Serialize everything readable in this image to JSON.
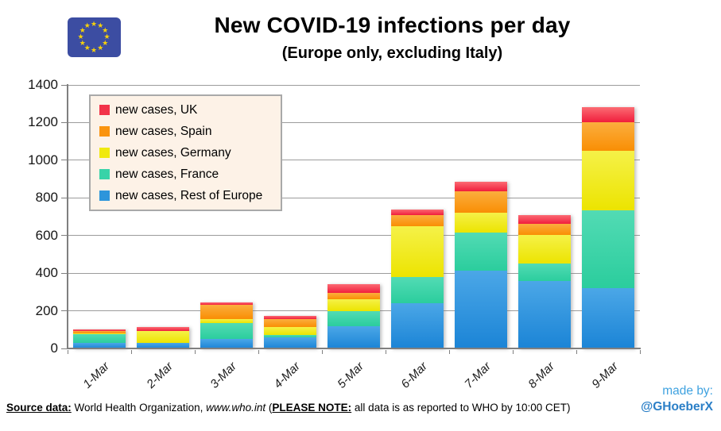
{
  "header": {
    "flag": {
      "background": "#3c4da2",
      "star_color": "#f6d10a",
      "star_glyph": "★"
    }
  },
  "chart_data": {
    "type": "bar",
    "stacked": true,
    "title": "New COVID-19 infections per day",
    "subtitle": "(Europe only, excluding Italy)",
    "categories": [
      "1-Mar",
      "2-Mar",
      "3-Mar",
      "4-Mar",
      "5-Mar",
      "6-Mar",
      "7-Mar",
      "8-Mar",
      "9-Mar"
    ],
    "series": [
      {
        "name": "new cases, UK",
        "color": "#f23349",
        "gradient": [
          "#fb6b73",
          "#f01e3c"
        ],
        "values": [
          10,
          18,
          10,
          14,
          44,
          27,
          52,
          46,
          80
        ]
      },
      {
        "name": "new cases, Spain",
        "color": "#fa9410",
        "gradient": [
          "#fbae3e",
          "#f98e04"
        ],
        "values": [
          11,
          0,
          79,
          42,
          35,
          60,
          115,
          60,
          152
        ]
      },
      {
        "name": "new cases, Germany",
        "color": "#f0e90f",
        "gradient": [
          "#f5f148",
          "#ece400"
        ],
        "values": [
          5,
          66,
          20,
          42,
          63,
          270,
          105,
          150,
          315
        ]
      },
      {
        "name": "new cases, France",
        "color": "#38d3a8",
        "gradient": [
          "#52dbb4",
          "#2bcd9d"
        ],
        "values": [
          45,
          0,
          85,
          13,
          78,
          140,
          200,
          92,
          415
        ]
      },
      {
        "name": "new cases, Rest of Europe",
        "color": "#2d95db",
        "gradient": [
          "#4ba7e7",
          "#1b84d6"
        ],
        "values": [
          30,
          28,
          50,
          60,
          120,
          240,
          415,
          360,
          320
        ]
      }
    ],
    "stack_note": "series listed top-of-stack first; bottom-to-top order is Rest of Europe, France, Germany, Spain, UK",
    "totals": [
      101,
      112,
      244,
      171,
      340,
      737,
      887,
      708,
      1282
    ],
    "ylim": [
      0,
      1400
    ],
    "ytick_interval": 200,
    "yticks": [
      0,
      200,
      400,
      600,
      800,
      1000,
      1200,
      1400
    ],
    "xlabel": "",
    "ylabel": "",
    "grid": true,
    "legend_position": "upper-left",
    "grid_color": "#9c9c9c",
    "axis_color": "#7f7f7f"
  },
  "footer": {
    "source_label": "Source data:",
    "source_text": " World Health Organization, ",
    "source_site": "www.who.int",
    "note_open": "  (",
    "note_label": "PLEASE NOTE:",
    "note_text": " all data is as reported to WHO by 10:00 CET)",
    "made_by_label": "made by:",
    "made_by_handle": "@GHoeberX",
    "made_by_label_color": "#3fa2e0",
    "made_by_handle_color": "#2b7fc7"
  }
}
